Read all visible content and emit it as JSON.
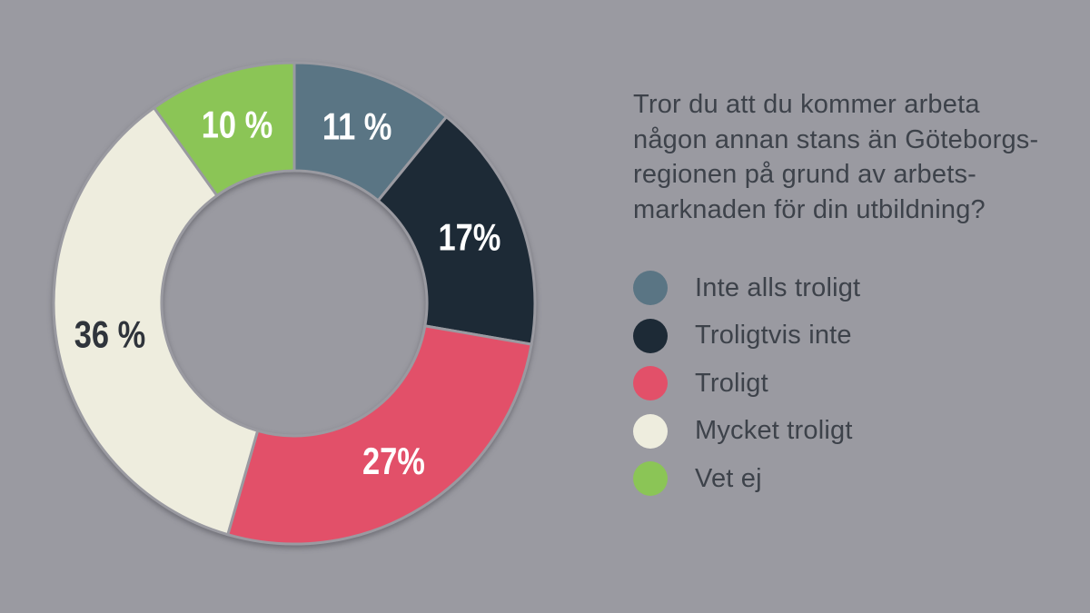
{
  "page": {
    "background_color": "#9a9aa1",
    "text_color": "#3d424a"
  },
  "question": {
    "lines": [
      "Tror du att du kommer arbeta",
      "någon annan stans än Göteborgs-",
      "regionen på grund av arbets-",
      "marknaden för din utbildning?"
    ]
  },
  "chart_data": {
    "type": "pie",
    "variant": "donut",
    "title": "Tror du att du kommer arbeta någon annan stans än Göteborgsregionen på grund av arbetsmarknaden för din utbildning?",
    "categories": [
      "Inte alls troligt",
      "Troligtvis inte",
      "Troligt",
      "Mycket troligt",
      "Vet ej"
    ],
    "values": [
      11,
      17,
      27,
      36,
      10
    ],
    "value_labels": [
      "11 %",
      "17%",
      "27%",
      "36 %",
      "10 %"
    ],
    "colors": [
      "#5a7584",
      "#1d2a36",
      "#e25069",
      "#eeedde",
      "#8bc556"
    ],
    "value_label_colors": [
      "#ffffff",
      "#ffffff",
      "#ffffff",
      "#2f343b",
      "#ffffff"
    ],
    "start_angle_deg": 0,
    "direction": "clockwise",
    "slice_gap_color": "#9a9aa1",
    "legend_position": "right"
  },
  "legend": {
    "items": [
      {
        "label": "Inte alls troligt",
        "color": "#5a7584"
      },
      {
        "label": "Troligtvis inte",
        "color": "#1d2a36"
      },
      {
        "label": "Troligt",
        "color": "#e25069"
      },
      {
        "label": "Mycket troligt",
        "color": "#eeedde"
      },
      {
        "label": "Vet ej",
        "color": "#8bc556"
      }
    ]
  }
}
